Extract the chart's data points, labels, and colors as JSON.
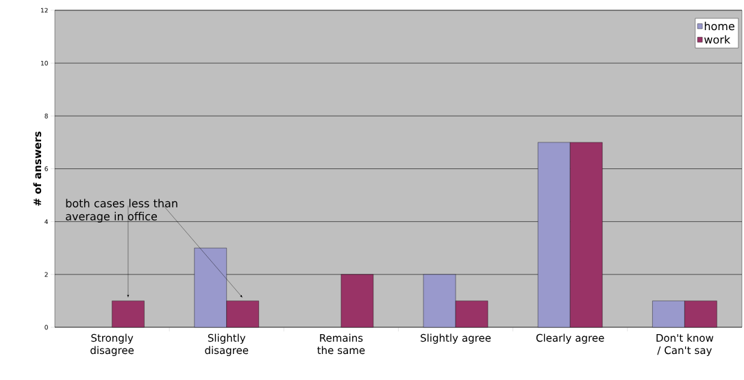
{
  "chart_data": {
    "type": "bar",
    "ylabel": "# of answers",
    "categories": [
      "Strongly disagree",
      "Slightly disagree",
      "Remains the same",
      "Slightly agree",
      "Clearly agree",
      "Don't know / Can't say"
    ],
    "series": [
      {
        "name": "home",
        "color": "#9999cc",
        "values": [
          null,
          3,
          null,
          2,
          7,
          1
        ]
      },
      {
        "name": "work",
        "color": "#993366",
        "values": [
          1,
          1,
          2,
          1,
          7,
          1
        ]
      }
    ],
    "ylim": [
      0,
      12
    ],
    "yticks": [
      0,
      2,
      4,
      6,
      8,
      10,
      12
    ],
    "grid": "y",
    "legend": "top right",
    "annotations": [
      "both cases less than average in office"
    ]
  }
}
